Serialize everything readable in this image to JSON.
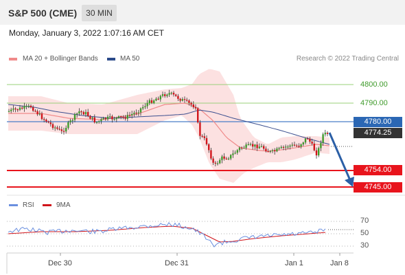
{
  "header": {
    "title": "S&P 500 (CME)",
    "timeframe": "30 MIN"
  },
  "datetime": "Monday, January 3, 2022 1:07:16 AM CET",
  "legend": {
    "ma20_bb": "MA 20 + Bollinger Bands",
    "ma50": "MA 50",
    "copyright": "Research © 2022 Trading Central"
  },
  "levels": {
    "r2": "4800.00",
    "r1": "4790.00",
    "pivot": "4780.00",
    "last": "4774.25",
    "s1": "4754.00",
    "s2": "4745.00"
  },
  "rsi": {
    "legend_rsi": "RSI",
    "legend_9ma": "9MA",
    "levels": [
      "70",
      "50",
      "30"
    ]
  },
  "xaxis": [
    "Dec 30",
    "Dec 31",
    "Jan 1",
    "Jan 8"
  ],
  "colors": {
    "green": "#3e9a2a",
    "red": "#e8141c",
    "blue": "#2b67b4",
    "ma20": "#f08a8a",
    "ma50": "#2b4a8a",
    "rsi": "#6a8fdf",
    "rsi_ma": "#d0141a"
  }
}
